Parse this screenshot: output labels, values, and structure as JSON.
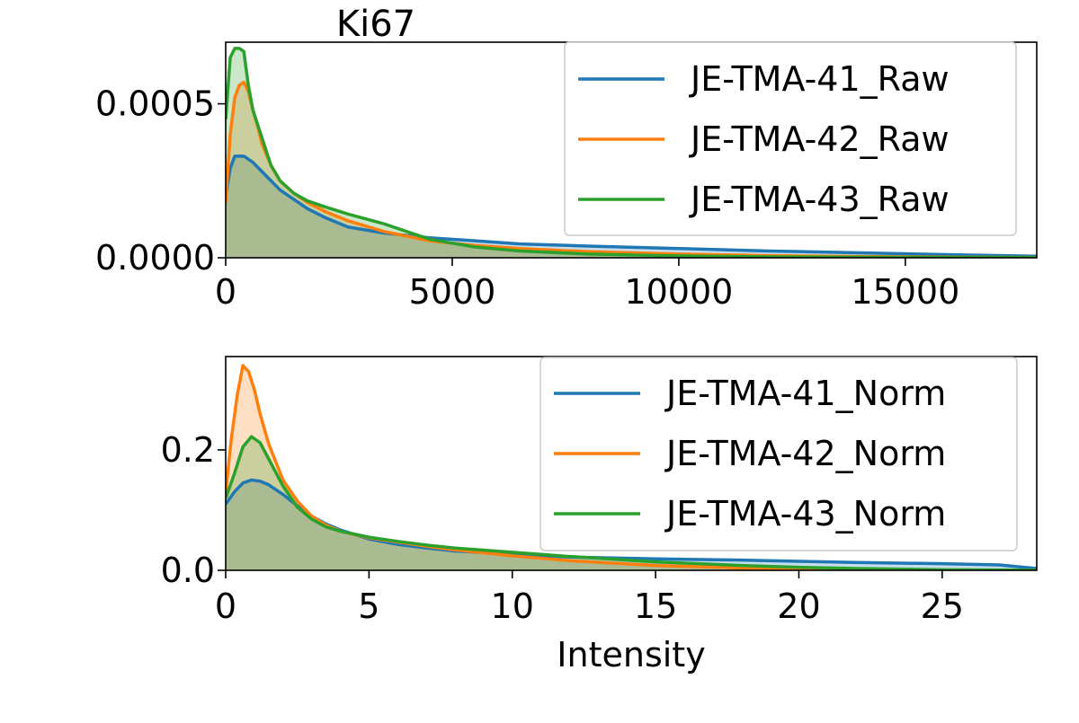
{
  "figure_title": "Ki67",
  "chart_data": [
    {
      "type": "area",
      "title": "Ki67",
      "xlabel": "",
      "ylabel": "",
      "xlim": [
        0,
        17900
      ],
      "ylim": [
        0,
        0.0007
      ],
      "xticks": [
        0,
        5000,
        10000,
        15000
      ],
      "xtick_labels": [
        "0",
        "5000",
        "10000",
        "15000"
      ],
      "yticks": [
        0,
        0.0005
      ],
      "ytick_labels": [
        "0.0000",
        "0.0005"
      ],
      "grid": false,
      "legend_position": "top-right",
      "series": [
        {
          "name": "JE-TMA-41_Raw",
          "color": "#1f77b4",
          "x": [
            0,
            100,
            200,
            400,
            600,
            800,
            1000,
            1200,
            1500,
            1800,
            2200,
            2700,
            3500,
            4500,
            5500,
            6500,
            8000,
            10000,
            12000,
            14000,
            16000,
            17900
          ],
          "y": [
            0.0002,
            0.00029,
            0.00033,
            0.00033,
            0.00031,
            0.00028,
            0.00025,
            0.00022,
            0.00019,
            0.00016,
            0.00013,
            0.0001,
            8e-05,
            6.5e-05,
            5.5e-05,
            4.5e-05,
            3.8e-05,
            3e-05,
            2.2e-05,
            1.6e-05,
            1e-05,
            5e-06
          ]
        },
        {
          "name": "JE-TMA-42_Raw",
          "color": "#ff7f0e",
          "x": [
            0,
            100,
            200,
            300,
            400,
            500,
            600,
            700,
            800,
            1000,
            1200,
            1500,
            1800,
            2200,
            2700,
            3500,
            4500,
            5500,
            6500,
            8000,
            10000,
            12000,
            14000,
            16000,
            17900
          ],
          "y": [
            0.00018,
            0.0004,
            0.00052,
            0.00056,
            0.00057,
            0.00054,
            0.00048,
            0.00043,
            0.00037,
            0.0003,
            0.00025,
            0.00021,
            0.00018,
            0.00015,
            0.00012,
            8.5e-05,
            5.5e-05,
            4e-05,
            3e-05,
            2e-05,
            1.2e-05,
            7e-06,
            4e-06,
            2e-06,
            1e-06
          ]
        },
        {
          "name": "JE-TMA-43_Raw",
          "color": "#2ca02c",
          "x": [
            0,
            100,
            200,
            300,
            400,
            500,
            600,
            800,
            1000,
            1200,
            1500,
            1800,
            2200,
            2700,
            3500,
            4500,
            5500,
            6500,
            8000,
            10000,
            12000,
            14000,
            16000,
            17900
          ],
          "y": [
            0.00045,
            0.00065,
            0.00068,
            0.00068,
            0.00067,
            0.00056,
            0.00048,
            0.00039,
            0.0003,
            0.00025,
            0.00021,
            0.000185,
            0.000165,
            0.000142,
            0.00011,
            6e-05,
            3.5e-05,
            2.2e-05,
            1.2e-05,
            6e-06,
            3e-06,
            2e-06,
            1e-06,
            1e-06
          ]
        }
      ]
    },
    {
      "type": "area",
      "title": "",
      "xlabel": "Intensity",
      "ylabel": "",
      "xlim": [
        0,
        28.3
      ],
      "ylim": [
        0,
        0.355
      ],
      "xticks": [
        0,
        5,
        10,
        15,
        20,
        25
      ],
      "xtick_labels": [
        "0",
        "5",
        "10",
        "15",
        "20",
        "25"
      ],
      "yticks": [
        0,
        0.2
      ],
      "ytick_labels": [
        "0.0",
        "0.2"
      ],
      "grid": false,
      "legend_position": "top-right",
      "series": [
        {
          "name": "JE-TMA-41_Norm",
          "color": "#1f77b4",
          "x": [
            0,
            0.3,
            0.6,
            0.9,
            1.2,
            1.5,
            2,
            2.5,
            3,
            3.5,
            4,
            5,
            6,
            7,
            8,
            10,
            12,
            15,
            18,
            20,
            22,
            25,
            27,
            28.3
          ],
          "y": [
            0.11,
            0.13,
            0.145,
            0.15,
            0.148,
            0.142,
            0.126,
            0.107,
            0.09,
            0.077,
            0.067,
            0.052,
            0.043,
            0.037,
            0.032,
            0.027,
            0.022,
            0.019,
            0.017,
            0.015,
            0.013,
            0.011,
            0.009,
            0.003
          ]
        },
        {
          "name": "JE-TMA-42_Norm",
          "color": "#ff7f0e",
          "x": [
            0,
            0.2,
            0.4,
            0.6,
            0.8,
            1,
            1.2,
            1.5,
            2,
            2.5,
            3,
            3.5,
            4,
            5,
            6,
            7,
            8,
            10,
            12,
            15,
            18,
            20,
            22,
            25,
            28.3
          ],
          "y": [
            0.13,
            0.22,
            0.29,
            0.34,
            0.33,
            0.3,
            0.26,
            0.21,
            0.15,
            0.115,
            0.09,
            0.075,
            0.065,
            0.054,
            0.047,
            0.04,
            0.034,
            0.024,
            0.016,
            0.008,
            0.004,
            0.002,
            0.001,
            0.0005,
            0.0001
          ]
        },
        {
          "name": "JE-TMA-43_Norm",
          "color": "#2ca02c",
          "x": [
            0,
            0.3,
            0.6,
            0.9,
            1.2,
            1.5,
            2,
            2.5,
            3,
            3.5,
            4,
            5,
            6,
            7,
            8,
            10,
            12,
            15,
            18,
            20,
            22,
            25,
            28.3
          ],
          "y": [
            0.12,
            0.16,
            0.205,
            0.222,
            0.212,
            0.185,
            0.14,
            0.105,
            0.085,
            0.072,
            0.065,
            0.055,
            0.048,
            0.042,
            0.037,
            0.03,
            0.023,
            0.014,
            0.008,
            0.005,
            0.003,
            0.001,
            0.0003
          ]
        }
      ]
    }
  ]
}
